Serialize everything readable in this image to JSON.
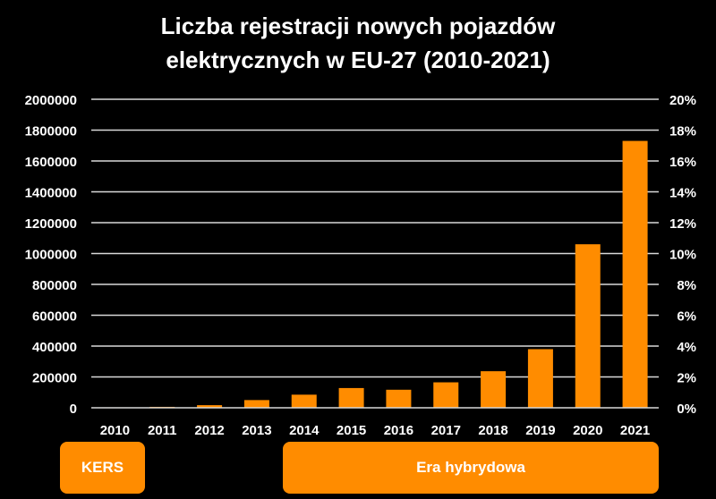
{
  "chart_data": {
    "type": "bar",
    "title_lines": [
      "Liczba rejestracji nowych pojazdów",
      "elektrycznych w EU-27 (2010-2021)"
    ],
    "categories": [
      "2010",
      "2011",
      "2012",
      "2013",
      "2014",
      "2015",
      "2016",
      "2017",
      "2018",
      "2019",
      "2020",
      "2021"
    ],
    "values": [
      3000,
      6000,
      17000,
      50000,
      85000,
      128000,
      117000,
      165000,
      237000,
      380000,
      1060000,
      1730000
    ],
    "ylim": [
      0,
      2000000
    ],
    "y_ticks": [
      "0",
      "200000",
      "400000",
      "600000",
      "800000",
      "1000000",
      "1200000",
      "1400000",
      "1600000",
      "1800000",
      "2000000"
    ],
    "y2_ticks": [
      "0%",
      "2%",
      "4%",
      "6%",
      "8%",
      "10%",
      "12%",
      "14%",
      "16%",
      "18%",
      "20%"
    ],
    "grid": true,
    "bar_color": "#ff8c00",
    "grid_color": "#d9d9d9",
    "text_color": "#ffffff"
  },
  "eras": [
    {
      "label": "KERS"
    },
    {
      "label": "Era hybrydowa"
    }
  ]
}
